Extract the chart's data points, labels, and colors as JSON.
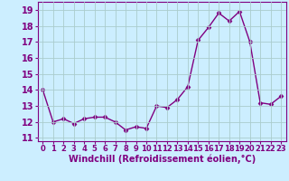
{
  "x": [
    0,
    1,
    2,
    3,
    4,
    5,
    6,
    7,
    8,
    9,
    10,
    11,
    12,
    13,
    14,
    15,
    16,
    17,
    18,
    19,
    20,
    21,
    22,
    23
  ],
  "y": [
    14.0,
    12.0,
    12.2,
    11.9,
    12.2,
    12.3,
    12.3,
    12.0,
    11.5,
    11.7,
    11.6,
    13.0,
    12.9,
    13.4,
    14.2,
    17.1,
    17.9,
    18.8,
    18.3,
    18.9,
    17.0,
    13.2,
    13.1,
    13.6
  ],
  "line_color": "#800080",
  "marker": "D",
  "marker_size": 2.5,
  "line_width": 1.0,
  "bg_color": "#cceeff",
  "grid_color": "#aacccc",
  "xlabel": "Windchill (Refroidissement éolien,°C)",
  "xlabel_fontsize": 7,
  "tick_fontsize": 6,
  "ytick_fontsize": 7,
  "ylim": [
    10.8,
    19.5
  ],
  "yticks": [
    11,
    12,
    13,
    14,
    15,
    16,
    17,
    18,
    19
  ],
  "xlim": [
    -0.5,
    23.5
  ],
  "xticks": [
    0,
    1,
    2,
    3,
    4,
    5,
    6,
    7,
    8,
    9,
    10,
    11,
    12,
    13,
    14,
    15,
    16,
    17,
    18,
    19,
    20,
    21,
    22,
    23
  ]
}
